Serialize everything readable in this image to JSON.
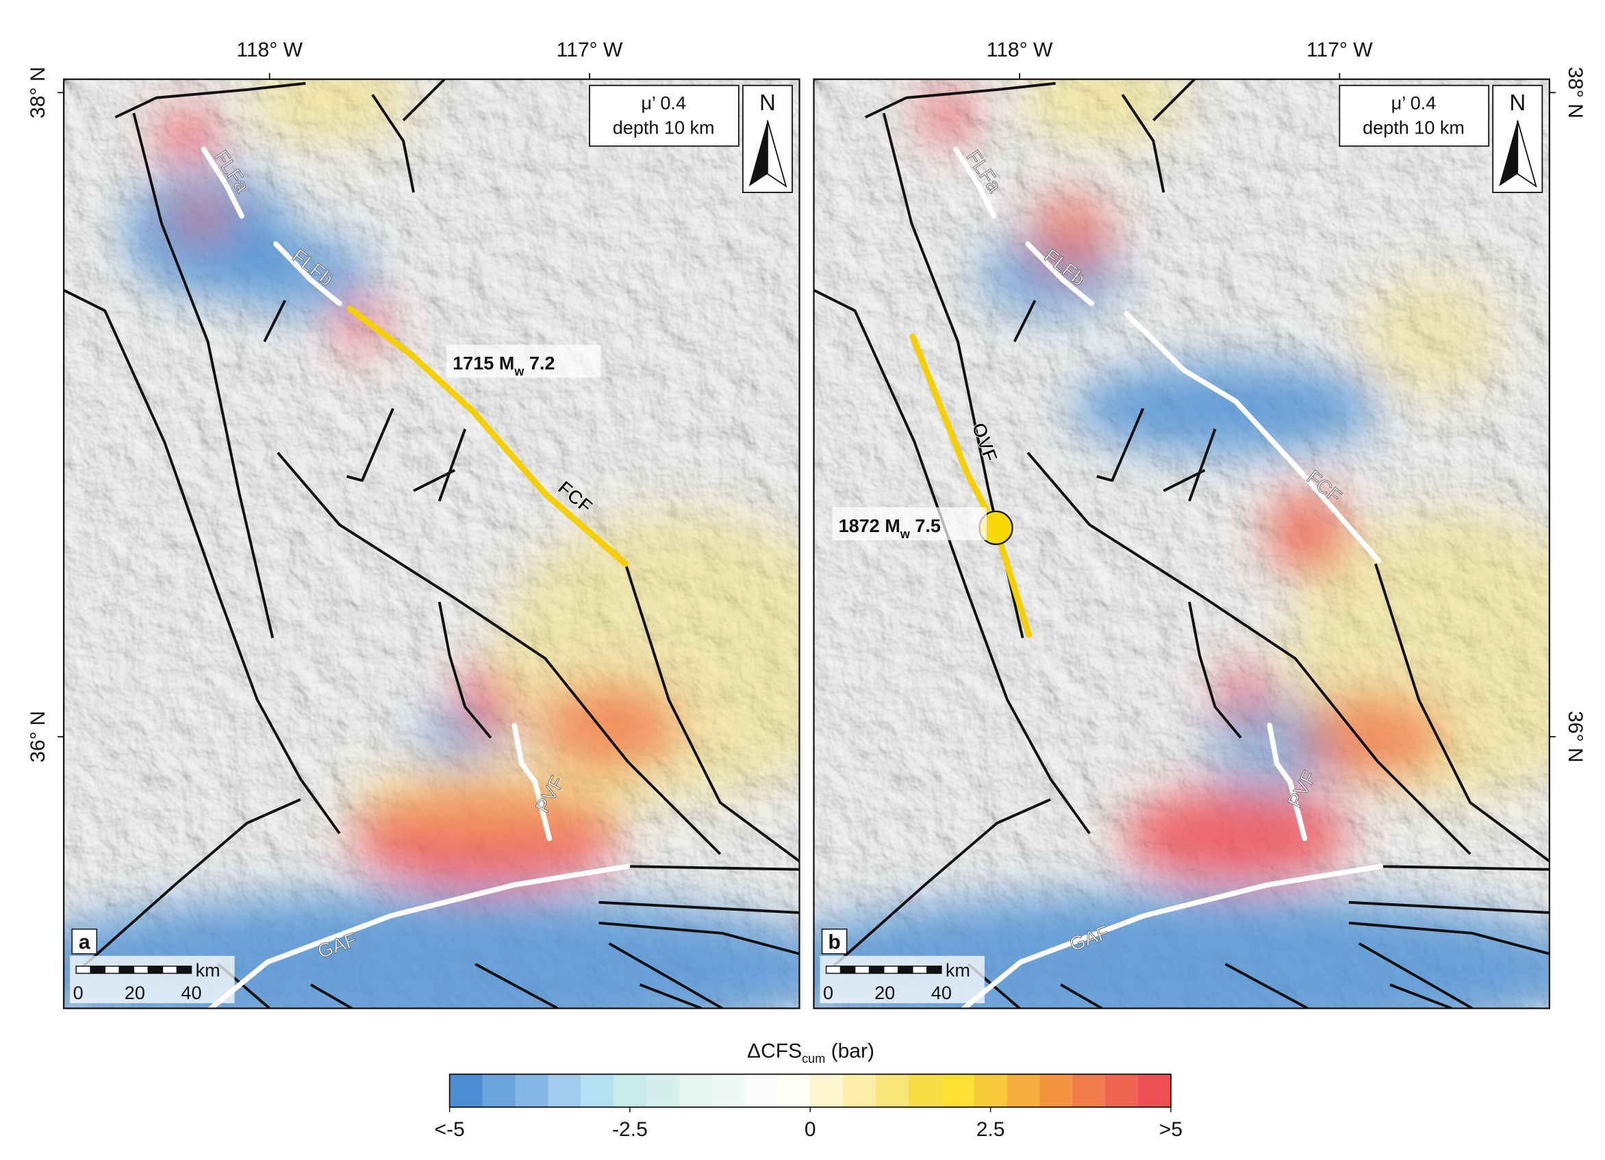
{
  "panels": [
    {
      "label": "a",
      "lon_labels": [
        "118° W",
        "117° W"
      ],
      "lat_labels": [
        "38° N",
        "36° N"
      ],
      "params": [
        "μ’ 0.4",
        "depth 10 km"
      ],
      "north": "N",
      "faults": [
        "FLFa",
        "FLFb",
        "FCF",
        "PVF",
        "GAF"
      ],
      "event": {
        "year": "1715 M",
        "subscript": "w",
        "magnitude": " 7.2"
      },
      "scale": {
        "unit": "km",
        "ticks": [
          "0",
          "20",
          "40"
        ]
      }
    },
    {
      "label": "b",
      "lon_labels": [
        "118° W",
        "117° W"
      ],
      "lat_labels": [
        "38° N",
        "36° N"
      ],
      "params": [
        "μ’ 0.4",
        "depth 10 km"
      ],
      "north": "N",
      "faults": [
        "FLFa",
        "FLFb",
        "OVF",
        "FCF",
        "PVF",
        "GAF"
      ],
      "event": {
        "year": "1872 M",
        "subscript": "w",
        "magnitude": " 7.5"
      },
      "scale": {
        "unit": "km",
        "ticks": [
          "0",
          "20",
          "40"
        ]
      }
    }
  ],
  "colorbar": {
    "title": "ΔCFS",
    "title_sub": "cum",
    "unit": " (bar)",
    "range": [
      -5,
      5
    ],
    "ticks": [
      {
        "value": -5,
        "label": "<-5"
      },
      -2.5,
      0,
      2.5,
      {
        "value": 5,
        "label": ">5"
      }
    ],
    "colors": [
      "#4a8fd4",
      "#6ba3dc",
      "#86b6e3",
      "#a2cbee",
      "#b5e0f0",
      "#c7ebeb",
      "#d6efec",
      "#e4f4f0",
      "#eff8f6",
      "#f9fcfa",
      "#fffef5",
      "#fdf6cf",
      "#fbeea6",
      "#f9e47a",
      "#f8de45",
      "#fce034",
      "#f8c93a",
      "#f6ae3c",
      "#f59440",
      "#f27c4b",
      "#ef6552",
      "#ee4f56"
    ]
  }
}
